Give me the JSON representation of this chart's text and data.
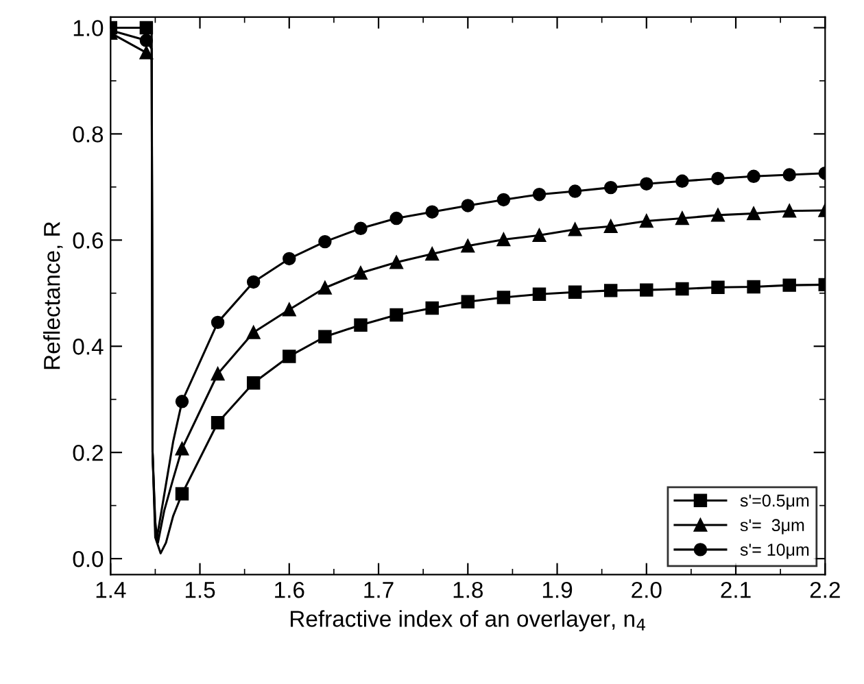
{
  "chart_data": {
    "type": "line",
    "xlabel": "Refractive index of an overlayer, n$_{4}$",
    "ylabel": "Reflectance, R",
    "xlim": [
      1.4,
      2.2
    ],
    "xticks": [
      1.4,
      1.5,
      1.6,
      1.7,
      1.8,
      1.9,
      {
        "value": 2,
        "label": "2.0"
      },
      2.1,
      2.2
    ],
    "ylim": [
      -0.03,
      1.02
    ],
    "yticks": [
      {
        "value": 0,
        "label": "0.0"
      },
      0.2,
      0.4,
      0.6,
      0.8,
      {
        "value": 1,
        "label": "1.0"
      }
    ],
    "grid": false,
    "legend": "bottom right",
    "line_style": "solid",
    "series": [
      {
        "name": "s'=0.5μm",
        "color": "#000000",
        "marker": "square",
        "x": [
          1.4,
          1.44,
          1.46,
          1.48,
          1.52,
          1.56,
          1.6,
          1.64,
          1.68,
          1.72,
          1.76,
          1.8,
          1.84,
          1.88,
          1.92,
          1.96,
          2.0,
          2.04,
          2.08,
          2.12,
          2.16,
          2.2
        ],
        "values": [
          1.0,
          1.0,
          null,
          0.122,
          0.256,
          0.331,
          0.381,
          0.418,
          0.44,
          0.459,
          0.472,
          0.484,
          0.492,
          0.498,
          0.502,
          0.505,
          0.506,
          0.508,
          0.511,
          0.512,
          0.515,
          0.516
        ]
      },
      {
        "name": "s'=  3μm",
        "color": "#000000",
        "marker": "triangle",
        "x": [
          1.4,
          1.44,
          1.46,
          1.48,
          1.52,
          1.56,
          1.6,
          1.64,
          1.68,
          1.72,
          1.76,
          1.8,
          1.84,
          1.88,
          1.92,
          1.96,
          2.0,
          2.04,
          2.08,
          2.12,
          2.16,
          2.2
        ],
        "values": [
          0.99,
          0.953,
          null,
          0.207,
          0.348,
          0.426,
          0.469,
          0.51,
          0.538,
          0.558,
          0.574,
          0.589,
          0.601,
          0.609,
          0.62,
          0.626,
          0.636,
          0.641,
          0.647,
          0.65,
          0.655,
          0.656
        ]
      },
      {
        "name": "s'= 10μm",
        "color": "#000000",
        "marker": "circle",
        "x": [
          1.4,
          1.44,
          1.46,
          1.48,
          1.52,
          1.56,
          1.6,
          1.64,
          1.68,
          1.72,
          1.76,
          1.8,
          1.84,
          1.88,
          1.92,
          1.96,
          2.0,
          2.04,
          2.08,
          2.12,
          2.16,
          2.2
        ],
        "values": [
          0.995,
          0.976,
          null,
          0.296,
          0.445,
          0.521,
          0.565,
          0.597,
          0.622,
          0.641,
          0.653,
          0.665,
          0.676,
          0.686,
          0.692,
          0.699,
          0.706,
          0.711,
          0.716,
          0.72,
          0.723,
          0.726
        ]
      },
      {
        "color": "#000000",
        "marker": "none",
        "x": [
          1.44,
          1.446,
          1.447,
          1.45,
          1.456,
          1.462,
          1.47,
          1.48
        ],
        "values": [
          1.0,
          1.0,
          0.2,
          0.04,
          0.01,
          0.03,
          0.08,
          0.122
        ]
      },
      {
        "color": "#000000",
        "marker": "none",
        "x": [
          1.44,
          1.446,
          1.447,
          1.45,
          1.453,
          1.46,
          1.47,
          1.48
        ],
        "values": [
          0.953,
          0.94,
          0.2,
          0.06,
          0.03,
          0.09,
          0.15,
          0.207
        ]
      },
      {
        "color": "#000000",
        "marker": "none",
        "x": [
          1.44,
          1.446,
          1.447,
          1.45,
          1.452,
          1.46,
          1.47,
          1.48
        ],
        "values": [
          0.976,
          0.96,
          0.2,
          0.07,
          0.04,
          0.12,
          0.22,
          0.296
        ]
      }
    ]
  }
}
